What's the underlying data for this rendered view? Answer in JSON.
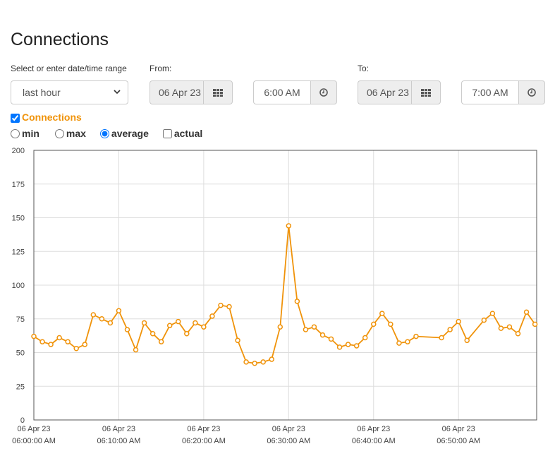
{
  "page": {
    "title": "Connections"
  },
  "range": {
    "label": "Select or enter date/time range",
    "selected": "last hour"
  },
  "from": {
    "label": "From:",
    "date": "06 Apr 23",
    "time": "6:00 AM"
  },
  "to": {
    "label": "To:",
    "date": "06 Apr 23",
    "time": "7:00 AM"
  },
  "series_toggle": {
    "label": "Connections",
    "checked": true,
    "color": "#f0930a"
  },
  "modes": [
    {
      "label": "min",
      "checked": false,
      "kind": "radio"
    },
    {
      "label": "max",
      "checked": false,
      "kind": "radio"
    },
    {
      "label": "average",
      "checked": true,
      "kind": "radio"
    },
    {
      "label": "actual",
      "checked": false,
      "kind": "checkbox"
    }
  ],
  "icons": {
    "calendar": "calendar-grid-icon",
    "clock": "clock-icon",
    "caret": "chevron-down-icon"
  },
  "chart_data": {
    "type": "line",
    "title": "",
    "xlabel": "",
    "ylabel": "",
    "ylim": [
      0,
      200
    ],
    "yticks": [
      0,
      25,
      50,
      75,
      100,
      125,
      150,
      175,
      200
    ],
    "xlim_minutes": [
      0,
      59.2
    ],
    "xticks": [
      {
        "minute": 0,
        "date": "06 Apr 23",
        "time": "06:00:00 AM"
      },
      {
        "minute": 10,
        "date": "06 Apr 23",
        "time": "06:10:00 AM"
      },
      {
        "minute": 20,
        "date": "06 Apr 23",
        "time": "06:20:00 AM"
      },
      {
        "minute": 30,
        "date": "06 Apr 23",
        "time": "06:30:00 AM"
      },
      {
        "minute": 40,
        "date": "06 Apr 23",
        "time": "06:40:00 AM"
      },
      {
        "minute": 50,
        "date": "06 Apr 23",
        "time": "06:50:00 AM"
      }
    ],
    "grid": true,
    "line_color": "#f0930a",
    "series": [
      {
        "x": [
          0,
          1,
          2,
          3,
          4,
          5,
          6,
          7,
          8,
          9,
          10,
          11,
          12,
          13,
          14,
          15,
          16,
          17,
          18,
          19,
          20,
          21,
          22,
          23,
          24,
          25,
          26,
          27,
          28,
          29,
          30,
          31,
          32,
          33,
          34,
          35,
          36,
          37,
          38,
          39,
          40,
          41,
          42,
          43,
          44,
          45,
          48,
          49,
          50,
          51,
          53,
          54,
          55,
          56,
          57,
          58,
          59
        ],
        "y": [
          62,
          58,
          56,
          61,
          58,
          53,
          56,
          78,
          75,
          72,
          81,
          67,
          52,
          72,
          64,
          58,
          70,
          73,
          64,
          72,
          69,
          77,
          85,
          84,
          59,
          43,
          42,
          43,
          45,
          69,
          144,
          88,
          67,
          69,
          63,
          60,
          54,
          56,
          55,
          61,
          71,
          79,
          71,
          57,
          58,
          62,
          61,
          67,
          73,
          59,
          74,
          79,
          68,
          69,
          64,
          80,
          71
        ]
      }
    ]
  }
}
